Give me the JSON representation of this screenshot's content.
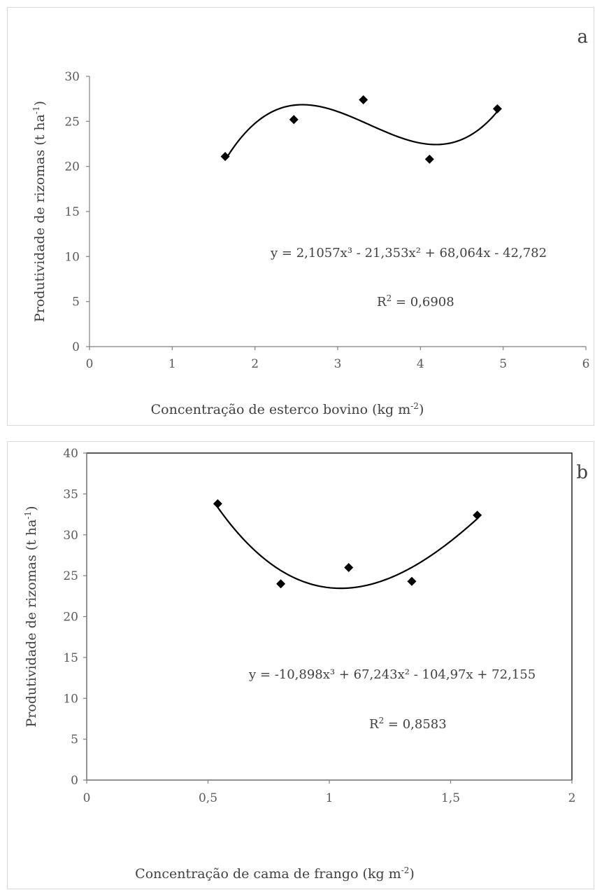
{
  "chart_data": [
    {
      "type": "scatter",
      "panel_label": "a",
      "xlabel": {
        "main": "Concentração de esterco bovino (kg m",
        "sup": "-2",
        "end": ")"
      },
      "ylabel": {
        "main": "Produtividade de rizomas (t ha",
        "sup": "-1",
        "end": ")"
      },
      "xlim": [
        0,
        6
      ],
      "ylim": [
        0,
        30
      ],
      "xticks": [
        0,
        1,
        2,
        3,
        4,
        5,
        6
      ],
      "xtick_labels": [
        "0",
        "1",
        "2",
        "3",
        "4",
        "5",
        "6"
      ],
      "yticks": [
        0,
        5,
        10,
        15,
        20,
        25,
        30
      ],
      "ytick_labels": [
        "0",
        "5",
        "10",
        "15",
        "20",
        "25",
        "30"
      ],
      "series": [
        {
          "x": [
            1.64,
            2.47,
            3.31,
            4.11,
            4.93
          ],
          "y": [
            21.1,
            25.2,
            27.4,
            20.8,
            26.4
          ]
        }
      ],
      "trendline": {
        "type": "polynomial",
        "coefficients": [
          2.1057,
          -21.353,
          68.064,
          -42.782
        ],
        "x_range": [
          1.64,
          4.93
        ]
      },
      "equation": "y = 2,1057x³ - 21,353x² + 68,064x - 42,782",
      "r2": {
        "main": "R",
        "sup": "2",
        "end": " = 0,6908"
      },
      "plot_border": false,
      "grid": false,
      "marker": "diamond",
      "marker_color": "#000000"
    },
    {
      "type": "scatter",
      "panel_label": "b",
      "xlabel": {
        "main": "Concentração de cama de frango (kg m",
        "sup": "-2",
        "end": ")"
      },
      "ylabel": {
        "main": "Produtividade de rizomas (t ha",
        "sup": "-1",
        "end": ")"
      },
      "xlim": [
        0,
        2
      ],
      "ylim": [
        0,
        40
      ],
      "xticks": [
        0,
        0.5,
        1,
        1.5,
        2
      ],
      "xtick_labels": [
        "0",
        "0,5",
        "1",
        "1,5",
        "2"
      ],
      "yticks": [
        0,
        5,
        10,
        15,
        20,
        25,
        30,
        35,
        40
      ],
      "ytick_labels": [
        "0",
        "5",
        "10",
        "15",
        "20",
        "25",
        "30",
        "35",
        "40"
      ],
      "series": [
        {
          "x": [
            0.54,
            0.8,
            1.08,
            1.34,
            1.61
          ],
          "y": [
            33.8,
            24.0,
            26.0,
            24.3,
            32.4
          ]
        }
      ],
      "trendline": {
        "type": "polynomial",
        "coefficients": [
          -10.898,
          67.243,
          -104.97,
          72.155
        ],
        "x_range": [
          0.54,
          1.61
        ]
      },
      "equation": "y = -10,898x³ + 67,243x² - 104,97x + 72,155",
      "r2": {
        "main": "R",
        "sup": "2",
        "end": " = 0,8583"
      },
      "plot_border": true,
      "grid": false,
      "marker": "diamond",
      "marker_color": "#000000"
    }
  ]
}
